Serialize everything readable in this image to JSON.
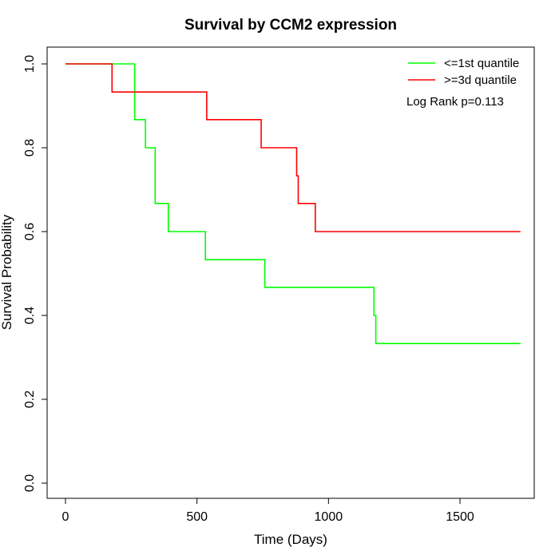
{
  "chart_data": {
    "type": "line",
    "title": "Survival by CCM2 expression",
    "xlabel": "Time (Days)",
    "ylabel": "Survival Probability",
    "xlim": [
      0,
      1770
    ],
    "ylim": [
      0,
      1.0
    ],
    "x_ticks": [
      0,
      500,
      1000,
      1500
    ],
    "y_ticks": [
      0.0,
      0.2,
      0.4,
      0.6,
      0.8,
      1.0
    ],
    "x_tick_labels": [
      "0",
      "500",
      "1000",
      "1500"
    ],
    "y_tick_labels": [
      "0.0",
      "0.2",
      "0.4",
      "0.6",
      "0.8",
      "1.0"
    ],
    "grid": false,
    "legend_position": "top-right",
    "annotation": "Log Rank p=0.113",
    "step": true,
    "series": [
      {
        "name": "<=1st quantile",
        "color": "#00ff00",
        "x": [
          0,
          253,
          263,
          304,
          341,
          391,
          532,
          758,
          1173,
          1180,
          1730
        ],
        "y": [
          1.0,
          1.0,
          0.867,
          0.8,
          0.667,
          0.6,
          0.533,
          0.467,
          0.4,
          0.333,
          0.333
        ]
      },
      {
        "name": ">=3d quantile",
        "color": "#ff0000",
        "x": [
          0,
          177,
          537,
          744,
          879,
          885,
          950,
          1730
        ],
        "y": [
          1.0,
          0.933,
          0.867,
          0.8,
          0.733,
          0.667,
          0.6,
          0.6
        ]
      }
    ]
  }
}
